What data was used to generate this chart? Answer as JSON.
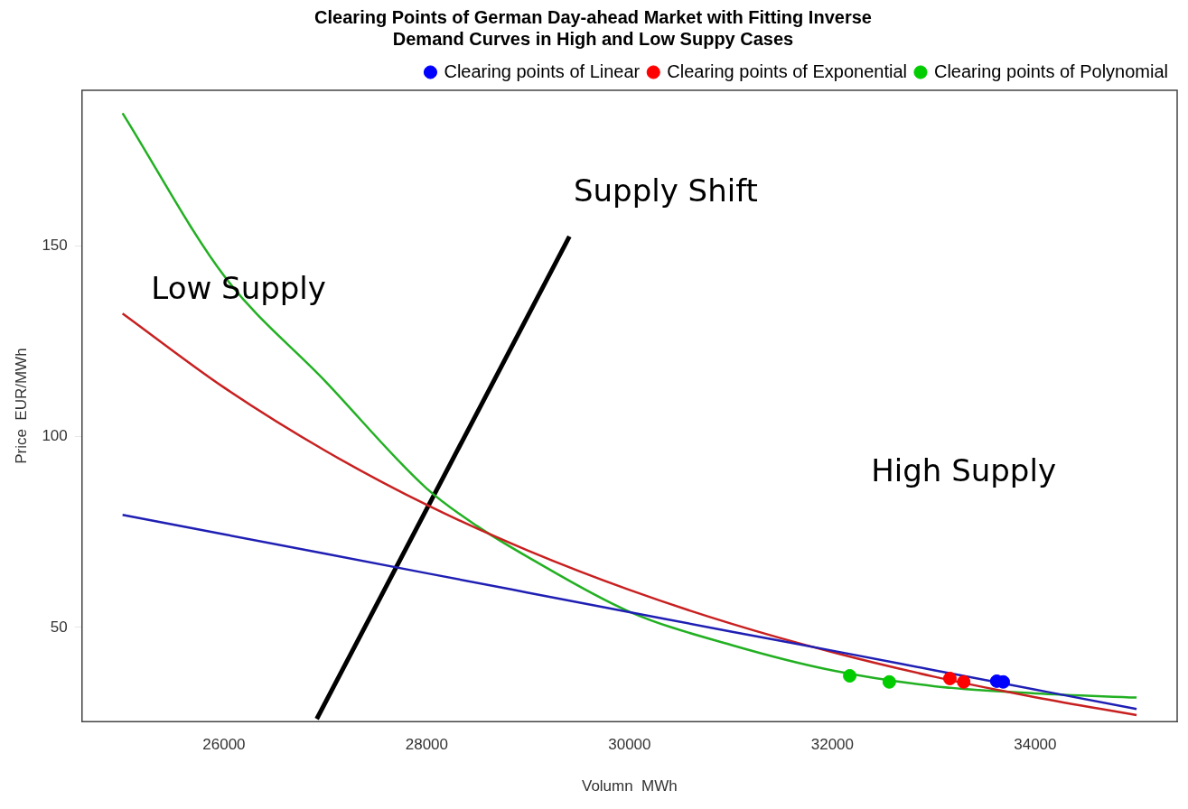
{
  "chart_data": {
    "type": "line",
    "title": "Clearing Points of German Day-ahead Market with Fitting Inverse\nDemand Curves in High and Low Suppy Cases",
    "xlabel": "Volumn  MWh",
    "ylabel": "Price  EUR/MWh",
    "xlim": [
      24600,
      35400
    ],
    "ylim": [
      25.3,
      190.8
    ],
    "xticks": [
      26000,
      28000,
      30000,
      32000,
      34000
    ],
    "yticks": [
      50,
      100,
      150
    ],
    "grid": false,
    "legend": "top right",
    "marker": "none",
    "line_style": "solid",
    "series": [
      {
        "color": "#1f1fb4",
        "x": [
          25000,
          26000,
          27000,
          28000,
          29000,
          30000,
          31000,
          32000,
          33000,
          34000,
          35000
        ],
        "values": [
          79.5,
          74.4,
          69.3,
          64.2,
          59.1,
          54.0,
          48.9,
          43.9,
          38.8,
          33.7,
          28.6
        ]
      },
      {
        "color": "#c82020",
        "x": [
          25000,
          26000,
          27000,
          28000,
          29000,
          30000,
          31000,
          32000,
          33000,
          34000,
          35000
        ],
        "values": [
          132.3,
          112.9,
          96.3,
          82.1,
          70.1,
          59.8,
          51.0,
          43.5,
          37.1,
          31.7,
          27.0
        ]
      },
      {
        "color": "#22b022",
        "x": [
          25000,
          26000,
          27000,
          28000,
          28500,
          29000,
          30000,
          31000,
          32000,
          33000,
          34000,
          35000
        ],
        "values": [
          184.8,
          142.2,
          114.5,
          86.4,
          76.5,
          68.4,
          54.1,
          45.4,
          38.7,
          34.6,
          32.7,
          31.6
        ]
      },
      {
        "color": "#000000",
        "x": [
          26915,
          29407
        ],
        "values": [
          26.0,
          152.5
        ]
      },
      {
        "type": "scatter",
        "name": "Clearing points of Linear",
        "color": "#0000ff",
        "marker": "circle",
        "x": [
          33621,
          33685
        ],
        "values": [
          35.9,
          35.7
        ]
      },
      {
        "type": "scatter",
        "name": "Clearing points of Exponential",
        "color": "#ff0000",
        "marker": "circle",
        "x": [
          33159,
          33295
        ],
        "values": [
          36.6,
          35.7
        ]
      },
      {
        "type": "scatter",
        "name": "Clearing points of Polynomial",
        "color": "#00cc00",
        "marker": "circle",
        "x": [
          32171,
          32561
        ],
        "values": [
          37.3,
          35.7
        ]
      }
    ],
    "annotations": [
      "Supply Shift",
      "Low Supply",
      "High Supply"
    ]
  }
}
